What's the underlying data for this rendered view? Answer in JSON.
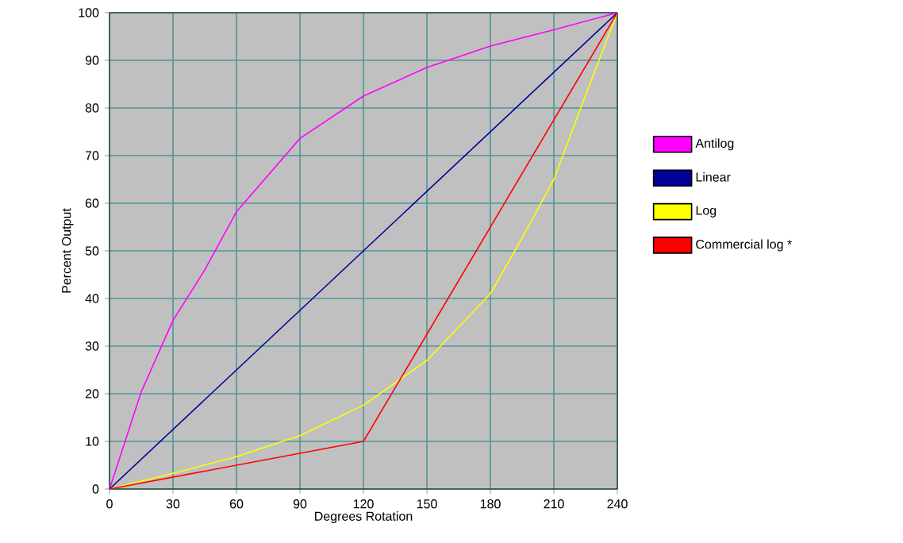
{
  "chart_data": {
    "type": "line",
    "xlabel": "Degrees Rotation",
    "ylabel": "Percent Output",
    "xlim": [
      0,
      240
    ],
    "ylim": [
      0,
      100
    ],
    "xticks": [
      0,
      30,
      60,
      90,
      120,
      150,
      180,
      210,
      240
    ],
    "yticks": [
      0,
      10,
      20,
      30,
      40,
      50,
      60,
      70,
      80,
      90,
      100
    ],
    "grid": true,
    "legend": "right",
    "marker": "none",
    "line_style": "solid",
    "series": [
      {
        "name": "Antilog",
        "color": "#ff00ff",
        "x": [
          0,
          15,
          30,
          45,
          60,
          90,
          120,
          150,
          180,
          210,
          240
        ],
        "values": [
          0,
          20.4,
          35.4,
          46,
          58.2,
          73.6,
          82.5,
          88.5,
          93,
          96.4,
          100
        ]
      },
      {
        "name": "Linear",
        "color": "#000099",
        "x": [
          0,
          240
        ],
        "values": [
          0,
          100
        ]
      },
      {
        "name": "Log",
        "color": "#ffff00",
        "x": [
          0,
          30,
          60,
          90,
          120,
          150,
          180,
          195,
          210,
          225,
          240
        ],
        "values": [
          0,
          3.3,
          6.8,
          11.2,
          17.6,
          27,
          41,
          52.7,
          65,
          82.7,
          100
        ]
      },
      {
        "name": "Commercial log *",
        "color": "#ff0000",
        "x": [
          0,
          120,
          240
        ],
        "values": [
          0,
          10,
          100
        ]
      }
    ]
  }
}
